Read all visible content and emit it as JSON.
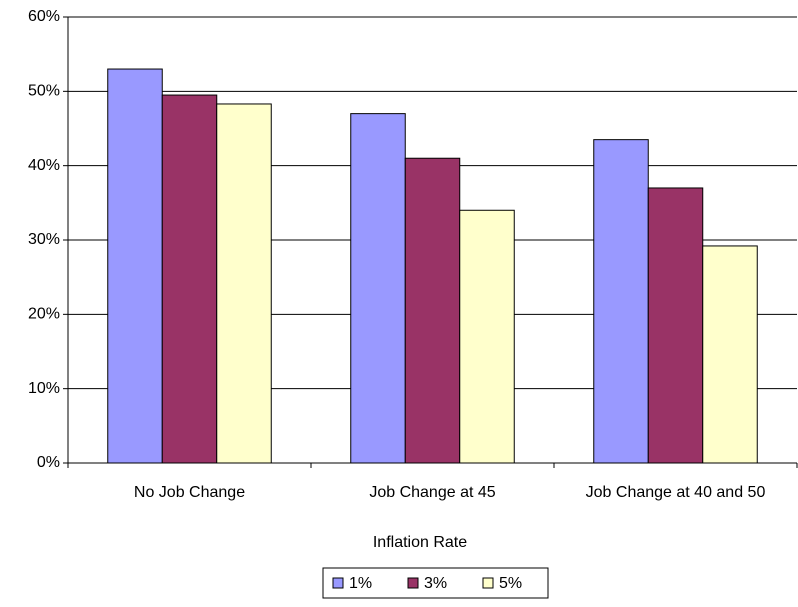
{
  "chart_data": {
    "type": "bar",
    "categories": [
      "No Job Change",
      "Job Change at 45",
      "Job Change at 40 and 50"
    ],
    "series": [
      {
        "name": "1%",
        "color": "#9999ff",
        "values": [
          53,
          47,
          43.5
        ]
      },
      {
        "name": "3%",
        "color": "#993366",
        "values": [
          49.5,
          41,
          37
        ]
      },
      {
        "name": "5%",
        "color": "#ffffcc",
        "values": [
          48.3,
          34,
          29.2
        ]
      }
    ],
    "xlabel": "Inflation Rate",
    "ylim": [
      0,
      60
    ],
    "yticks": [
      {
        "value": 0,
        "label": "0%"
      },
      {
        "value": 10,
        "label": "10%"
      },
      {
        "value": 20,
        "label": "20%"
      },
      {
        "value": 30,
        "label": "30%"
      },
      {
        "value": 40,
        "label": "40%"
      },
      {
        "value": 50,
        "label": "50%"
      },
      {
        "value": 60,
        "label": "60%"
      }
    ],
    "grid": true,
    "legend": "bottom"
  }
}
